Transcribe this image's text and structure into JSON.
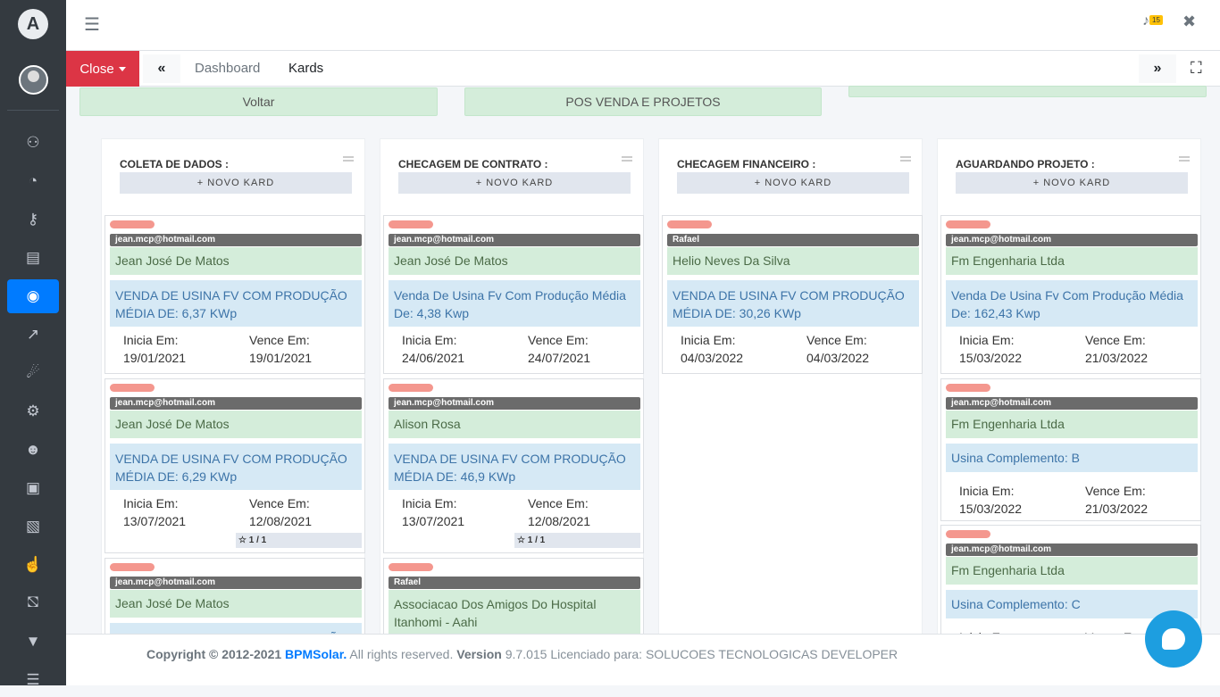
{
  "sidebar": {
    "logo_letter": "A",
    "icons": [
      "user-cog-icon",
      "chart-pie-icon",
      "key-icon",
      "calendar-icon",
      "comments-icon",
      "chart-line-icon",
      "satellite-dish-icon",
      "cogs-icon",
      "users-icon",
      "money-bill-icon",
      "chart-bar-icon",
      "hand-holding-usd-icon",
      "cart-icon",
      "funnel-dollar-icon",
      "bars-icon"
    ]
  },
  "topbar": {
    "notification_count": "15"
  },
  "tabs": {
    "close_label": "Close",
    "dashboard": "Dashboard",
    "kards": "Kards"
  },
  "pipeline_buttons": {
    "back": "Voltar",
    "current": "POS VENDA E PROJETOS"
  },
  "add_label": "+ NOVO KARD",
  "columns": [
    {
      "title": "COLETA DE DADOS :",
      "cards": [
        {
          "owner": "jean.mcp@hotmail.com",
          "client": "Jean José De Matos",
          "description": "VENDA DE USINA FV COM PRODUÇÃO MÉDIA DE: 6,37 KWp",
          "start_label": "Inicia Em:",
          "start": "19/01/2021",
          "due_label": "Vence Em:",
          "due": "19/01/2021",
          "stars": ""
        },
        {
          "owner": "jean.mcp@hotmail.com",
          "client": "Jean José De Matos",
          "description": "VENDA DE USINA FV COM PRODUÇÃO MÉDIA DE: 6,29 KWp",
          "start_label": "Inicia Em:",
          "start": "13/07/2021",
          "due_label": "Vence Em:",
          "due": "12/08/2021",
          "stars": "1 / 1"
        },
        {
          "owner": "jean.mcp@hotmail.com",
          "client": "Jean José De Matos",
          "description": "VENDA DE USINA FV COM PRODUÇÃO",
          "start_label": "",
          "start": "",
          "due_label": "",
          "due": "",
          "stars": ""
        }
      ]
    },
    {
      "title": "CHECAGEM DE CONTRATO :",
      "cards": [
        {
          "owner": "jean.mcp@hotmail.com",
          "client": "Jean José De Matos",
          "description": "Venda De Usina Fv Com Produção Média De: 4,38 Kwp",
          "start_label": "Inicia Em:",
          "start": "24/06/2021",
          "due_label": "Vence Em:",
          "due": "24/07/2021",
          "stars": ""
        },
        {
          "owner": "jean.mcp@hotmail.com",
          "client": "Alison Rosa",
          "description": "VENDA DE USINA FV COM PRODUÇÃO MÉDIA DE: 46,9 KWp",
          "start_label": "Inicia Em:",
          "start": "13/07/2021",
          "due_label": "Vence Em:",
          "due": "12/08/2021",
          "stars": "1 / 1"
        },
        {
          "owner": "Rafael",
          "client": "Associacao Dos Amigos Do Hospital Itanhomi - Aahi",
          "description": "",
          "start_label": "",
          "start": "",
          "due_label": "",
          "due": "",
          "stars": ""
        }
      ]
    },
    {
      "title": "CHECAGEM FINANCEIRO :",
      "cards": [
        {
          "owner": "Rafael",
          "client": "Helio Neves Da Silva",
          "description": "VENDA DE USINA FV COM PRODUÇÃO MÉDIA DE: 30,26 KWp",
          "start_label": "Inicia Em:",
          "start": "04/03/2022",
          "due_label": "Vence Em:",
          "due": "04/03/2022",
          "stars": ""
        }
      ]
    },
    {
      "title": "AGUARDANDO PROJETO :",
      "cards": [
        {
          "owner": "jean.mcp@hotmail.com",
          "client": "Fm Engenharia Ltda",
          "description": "Venda De Usina Fv Com Produção Média De: 162,43 Kwp",
          "start_label": "Inicia Em:",
          "start": "15/03/2022",
          "due_label": "Vence Em:",
          "due": "21/03/2022",
          "stars": ""
        },
        {
          "owner": "jean.mcp@hotmail.com",
          "client": "Fm Engenharia Ltda",
          "description": "Usina Complemento: B",
          "start_label": "Inicia Em:",
          "start": "15/03/2022",
          "due_label": "Vence Em:",
          "due": "21/03/2022",
          "stars": ""
        },
        {
          "owner": "jean.mcp@hotmail.com",
          "client": "Fm Engenharia Ltda",
          "description": "Usina Complemento: C",
          "start_label": "Inicia Em:",
          "start": "",
          "due_label": "Vence Em:",
          "due": "",
          "stars": ""
        }
      ]
    }
  ],
  "footer": {
    "copyright": "Copyright © 2012-2021",
    "brand": "BPMSolar.",
    "rights": "All rights reserved.",
    "version_label": "Version",
    "version": "9.7.015 Licenciado para: SOLUCOES TECNOLOGICAS DEVELOPER"
  },
  "colors": {
    "sidebar": "#343a40",
    "active": "#007bff",
    "close": "#dc3545",
    "client_bg": "#d4edda",
    "desc_bg": "#d6e9f5",
    "chat": "#1d9ee0"
  }
}
